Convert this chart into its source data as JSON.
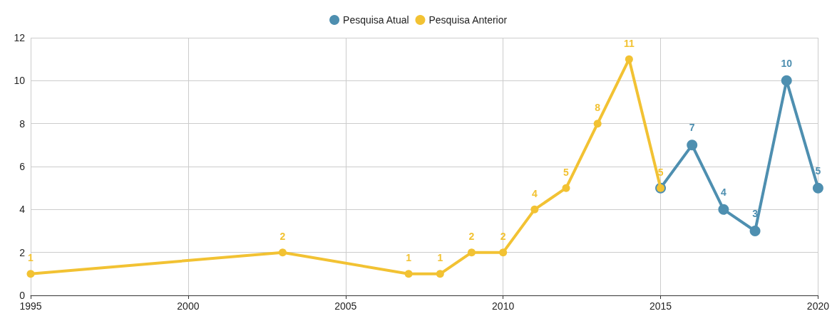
{
  "chart_data": {
    "type": "line",
    "legend": "top",
    "grid": true,
    "marker": "circle",
    "line_style": "solid",
    "xlim": [
      1995,
      2020
    ],
    "xticks": [
      1995,
      2000,
      2005,
      2010,
      2015,
      2020
    ],
    "ylim": [
      0,
      12
    ],
    "yticks": [
      0,
      2,
      4,
      6,
      8,
      10,
      12
    ],
    "series": [
      {
        "name": "Pesquisa Atual",
        "color": "#4e8fb0",
        "x": [
          2015,
          2016,
          2017,
          2018,
          2019,
          2020
        ],
        "values": [
          5,
          7,
          4,
          3,
          10,
          5
        ],
        "value_labels": [
          null,
          "7",
          "4",
          "3",
          "10",
          "5"
        ]
      },
      {
        "name": "Pesquisa Anterior",
        "color": "#f2c233",
        "x": [
          1995,
          2003,
          2007,
          2008,
          2009,
          2010,
          2011,
          2012,
          2013,
          2014,
          2015
        ],
        "values": [
          1,
          2,
          1,
          1,
          2,
          2,
          4,
          5,
          8,
          11,
          5
        ],
        "value_labels": [
          "1",
          "2",
          "1",
          "1",
          "2",
          "2",
          "4",
          "5",
          "8",
          "11",
          "5"
        ]
      }
    ]
  }
}
